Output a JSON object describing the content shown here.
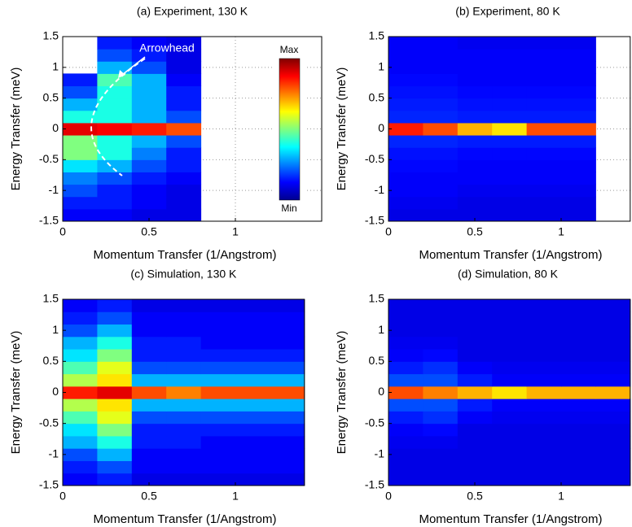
{
  "chart_data": [
    {
      "type": "heatmap",
      "title": "(a) Experiment, 130 K",
      "xlabel": "Momentum Transfer (1/Angstrom)",
      "ylabel": "Energy Transfer (meV)",
      "xlim": [
        0,
        1.5
      ],
      "ylim": [
        -1.5,
        1.5
      ],
      "xticks": [
        0,
        0.5,
        1
      ],
      "yticks": [
        -1.5,
        -1,
        -0.5,
        0,
        0.5,
        1,
        1.5
      ],
      "grid": true,
      "colormap": "jet",
      "zlim": [
        0,
        1
      ],
      "x_bins": [
        0,
        0.2,
        0.4,
        0.6,
        0.8,
        1.0,
        1.2,
        1.4
      ],
      "y_bins": [
        -1.5,
        -1.3,
        -1.1,
        -0.9,
        -0.7,
        -0.5,
        -0.3,
        -0.1,
        0.1,
        0.3,
        0.5,
        0.7,
        0.9,
        1.1,
        1.3,
        1.5
      ],
      "z": [
        [
          0.12,
          0.12,
          0.1,
          0.1,
          null,
          null,
          null
        ],
        [
          0.15,
          0.15,
          0.12,
          0.1,
          null,
          null,
          null
        ],
        [
          0.2,
          0.15,
          0.12,
          0.1,
          null,
          null,
          null
        ],
        [
          0.25,
          0.2,
          0.15,
          0.12,
          null,
          null,
          null
        ],
        [
          0.35,
          0.3,
          0.2,
          0.15,
          null,
          null,
          null
        ],
        [
          0.5,
          0.4,
          0.25,
          0.15,
          null,
          null,
          null
        ],
        [
          0.5,
          0.4,
          0.3,
          0.2,
          null,
          null,
          null
        ],
        [
          0.9,
          0.88,
          0.85,
          0.8,
          null,
          null,
          null
        ],
        [
          0.4,
          0.4,
          0.3,
          0.2,
          null,
          null,
          null
        ],
        [
          0.3,
          0.4,
          0.3,
          0.15,
          null,
          null,
          null
        ],
        [
          0.2,
          0.4,
          0.3,
          0.15,
          null,
          null,
          null
        ],
        [
          0.15,
          0.45,
          0.3,
          0.12,
          null,
          null,
          null
        ],
        [
          null,
          0.3,
          0.2,
          0.1,
          null,
          null,
          null
        ],
        [
          null,
          0.2,
          0.15,
          0.1,
          null,
          null,
          null
        ],
        [
          null,
          0.15,
          0.12,
          0.1,
          null,
          null,
          null
        ]
      ],
      "colorbar": {
        "max_label": "Max",
        "min_label": "Min"
      },
      "annotation": "Arrowhead"
    },
    {
      "type": "heatmap",
      "title": "(b) Experiment, 80 K",
      "xlabel": "Momentum Transfer (1/Angstrom)",
      "ylabel": "Energy Transfer (meV)",
      "xlim": [
        0,
        1.4
      ],
      "ylim": [
        -1.5,
        1.5
      ],
      "xticks": [
        0,
        0.5,
        1
      ],
      "yticks": [
        -1.5,
        -1,
        -0.5,
        0,
        0.5,
        1,
        1.5
      ],
      "grid": true,
      "colormap": "jet",
      "zlim": [
        0,
        1
      ],
      "x_bins": [
        0,
        0.2,
        0.4,
        0.6,
        0.8,
        1.0,
        1.2,
        1.4
      ],
      "y_bins": [
        -1.5,
        -1.3,
        -1.1,
        -0.9,
        -0.7,
        -0.5,
        -0.3,
        -0.1,
        0.1,
        0.3,
        0.5,
        0.7,
        0.9,
        1.1,
        1.3,
        1.5
      ],
      "z": [
        [
          0.1,
          0.1,
          0.1,
          0.1,
          0.1,
          0.1,
          null
        ],
        [
          0.11,
          0.11,
          0.1,
          0.1,
          0.1,
          0.1,
          null
        ],
        [
          0.12,
          0.12,
          0.11,
          0.11,
          0.11,
          0.11,
          null
        ],
        [
          0.12,
          0.12,
          0.12,
          0.12,
          0.12,
          0.12,
          null
        ],
        [
          0.13,
          0.13,
          0.12,
          0.12,
          0.12,
          0.12,
          null
        ],
        [
          0.14,
          0.14,
          0.13,
          0.13,
          0.13,
          0.13,
          null
        ],
        [
          0.16,
          0.16,
          0.15,
          0.15,
          0.15,
          0.15,
          null
        ],
        [
          0.85,
          0.8,
          0.7,
          0.65,
          0.8,
          0.8,
          null
        ],
        [
          0.16,
          0.16,
          0.15,
          0.15,
          0.15,
          0.15,
          null
        ],
        [
          0.15,
          0.15,
          0.14,
          0.14,
          0.14,
          0.14,
          null
        ],
        [
          0.14,
          0.14,
          0.13,
          0.13,
          0.13,
          0.13,
          null
        ],
        [
          0.13,
          0.13,
          0.12,
          0.12,
          0.12,
          0.12,
          null
        ],
        [
          0.12,
          0.12,
          0.12,
          0.12,
          0.12,
          0.12,
          null
        ],
        [
          0.12,
          0.12,
          0.12,
          0.12,
          0.12,
          0.12,
          null
        ],
        [
          0.12,
          0.12,
          0.11,
          0.11,
          0.11,
          0.11,
          null
        ]
      ]
    },
    {
      "type": "heatmap",
      "title": "(c) Simulation, 130 K",
      "xlabel": "Momentum Transfer (1/Angstrom)",
      "ylabel": "Energy Transfer (meV)",
      "xlim": [
        0,
        1.4
      ],
      "ylim": [
        -1.5,
        1.5
      ],
      "xticks": [
        0,
        0.5,
        1
      ],
      "yticks": [
        -1.5,
        -1,
        -0.5,
        0,
        0.5,
        1,
        1.5
      ],
      "grid": true,
      "colormap": "jet",
      "zlim": [
        0,
        1
      ],
      "x_bins": [
        0,
        0.2,
        0.4,
        0.6,
        0.8,
        1.0,
        1.2,
        1.4
      ],
      "y_bins": [
        -1.5,
        -1.3,
        -1.1,
        -0.9,
        -0.7,
        -0.5,
        -0.3,
        -0.1,
        0.1,
        0.3,
        0.5,
        0.7,
        0.9,
        1.1,
        1.3,
        1.5
      ],
      "z": [
        [
          0.12,
          0.15,
          0.1,
          0.1,
          0.1,
          0.1,
          0.1
        ],
        [
          0.15,
          0.2,
          0.12,
          0.12,
          0.12,
          0.12,
          0.12
        ],
        [
          0.2,
          0.3,
          0.12,
          0.12,
          0.12,
          0.12,
          0.12
        ],
        [
          0.3,
          0.4,
          0.15,
          0.15,
          0.12,
          0.12,
          0.12
        ],
        [
          0.35,
          0.5,
          0.15,
          0.15,
          0.15,
          0.15,
          0.15
        ],
        [
          0.45,
          0.6,
          0.2,
          0.2,
          0.2,
          0.2,
          0.2
        ],
        [
          0.55,
          0.65,
          0.3,
          0.3,
          0.3,
          0.3,
          0.3
        ],
        [
          0.85,
          0.9,
          0.8,
          0.75,
          0.8,
          0.8,
          0.8
        ],
        [
          0.55,
          0.65,
          0.3,
          0.3,
          0.3,
          0.3,
          0.3
        ],
        [
          0.45,
          0.6,
          0.2,
          0.2,
          0.2,
          0.2,
          0.2
        ],
        [
          0.35,
          0.5,
          0.15,
          0.15,
          0.15,
          0.15,
          0.15
        ],
        [
          0.3,
          0.4,
          0.15,
          0.15,
          0.12,
          0.12,
          0.12
        ],
        [
          0.2,
          0.3,
          0.12,
          0.12,
          0.12,
          0.12,
          0.12
        ],
        [
          0.15,
          0.2,
          0.12,
          0.12,
          0.12,
          0.12,
          0.12
        ],
        [
          0.12,
          0.15,
          0.1,
          0.1,
          0.1,
          0.1,
          0.1
        ]
      ]
    },
    {
      "type": "heatmap",
      "title": "(d) Simulation, 80 K",
      "xlabel": "Momentum Transfer (1/Angstrom)",
      "ylabel": "Energy Transfer (meV)",
      "xlim": [
        0,
        1.4
      ],
      "ylim": [
        -1.5,
        1.5
      ],
      "xticks": [
        0,
        0.5,
        1
      ],
      "yticks": [
        -1.5,
        -1,
        -0.5,
        0,
        0.5,
        1,
        1.5
      ],
      "grid": true,
      "colormap": "jet",
      "zlim": [
        0,
        1
      ],
      "x_bins": [
        0,
        0.2,
        0.4,
        0.6,
        0.8,
        1.0,
        1.2,
        1.4
      ],
      "y_bins": [
        -1.5,
        -1.3,
        -1.1,
        -0.9,
        -0.7,
        -0.5,
        -0.3,
        -0.1,
        0.1,
        0.3,
        0.5,
        0.7,
        0.9,
        1.1,
        1.3,
        1.5
      ],
      "z": [
        [
          0.1,
          0.1,
          0.1,
          0.1,
          0.1,
          0.1,
          0.1
        ],
        [
          0.1,
          0.1,
          0.1,
          0.1,
          0.1,
          0.1,
          0.1
        ],
        [
          0.1,
          0.1,
          0.1,
          0.1,
          0.1,
          0.1,
          0.1
        ],
        [
          0.11,
          0.11,
          0.1,
          0.1,
          0.1,
          0.1,
          0.1
        ],
        [
          0.12,
          0.13,
          0.1,
          0.1,
          0.1,
          0.1,
          0.1
        ],
        [
          0.15,
          0.17,
          0.12,
          0.11,
          0.11,
          0.11,
          0.11
        ],
        [
          0.2,
          0.2,
          0.15,
          0.12,
          0.12,
          0.12,
          0.12
        ],
        [
          0.8,
          0.75,
          0.7,
          0.65,
          0.7,
          0.7,
          0.7
        ],
        [
          0.2,
          0.2,
          0.15,
          0.12,
          0.12,
          0.12,
          0.12
        ],
        [
          0.15,
          0.17,
          0.12,
          0.11,
          0.11,
          0.11,
          0.11
        ],
        [
          0.12,
          0.13,
          0.1,
          0.1,
          0.1,
          0.1,
          0.1
        ],
        [
          0.11,
          0.11,
          0.1,
          0.1,
          0.1,
          0.1,
          0.1
        ],
        [
          0.1,
          0.1,
          0.1,
          0.1,
          0.1,
          0.1,
          0.1
        ],
        [
          0.1,
          0.1,
          0.1,
          0.1,
          0.1,
          0.1,
          0.1
        ],
        [
          0.1,
          0.1,
          0.1,
          0.1,
          0.1,
          0.1,
          0.1
        ]
      ]
    }
  ]
}
